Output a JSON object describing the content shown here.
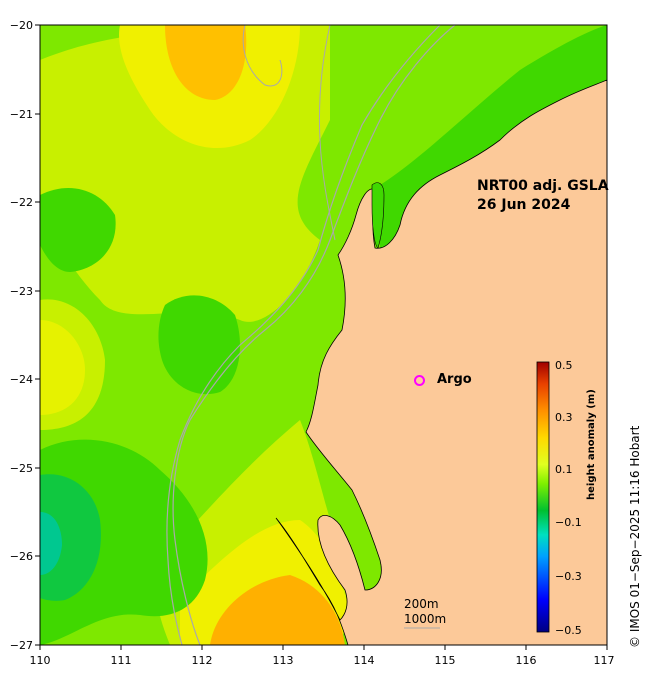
{
  "map": {
    "title_line1": "NRT00 adj. GSLA",
    "title_line2": "26 Jun 2024",
    "lon_ticks": [
      "110",
      "111",
      "112",
      "113",
      "114",
      "115",
      "116",
      "117"
    ],
    "lat_ticks": [
      "−20",
      "−21",
      "−22",
      "−23",
      "−24",
      "−25",
      "−26",
      "−27"
    ],
    "lon_range": [
      110,
      117
    ],
    "lat_range": [
      -27,
      -20
    ],
    "land_color": "#fcc999",
    "argo_label": "Argo",
    "argo_color": "#ff00ff",
    "isobath_200": "200m",
    "isobath_1000": "1000m",
    "isobath_color": "#a9a9a9"
  },
  "colorbar": {
    "title": "height anomaly (m)",
    "tick_labels": [
      "0.5",
      "0.3",
      "0.1",
      "−0.1",
      "−0.3",
      "−0.5"
    ],
    "range": [
      -0.5,
      0.5
    ]
  },
  "credit": "© IMOS 01−Sep−2025 11:16 Hobart"
}
